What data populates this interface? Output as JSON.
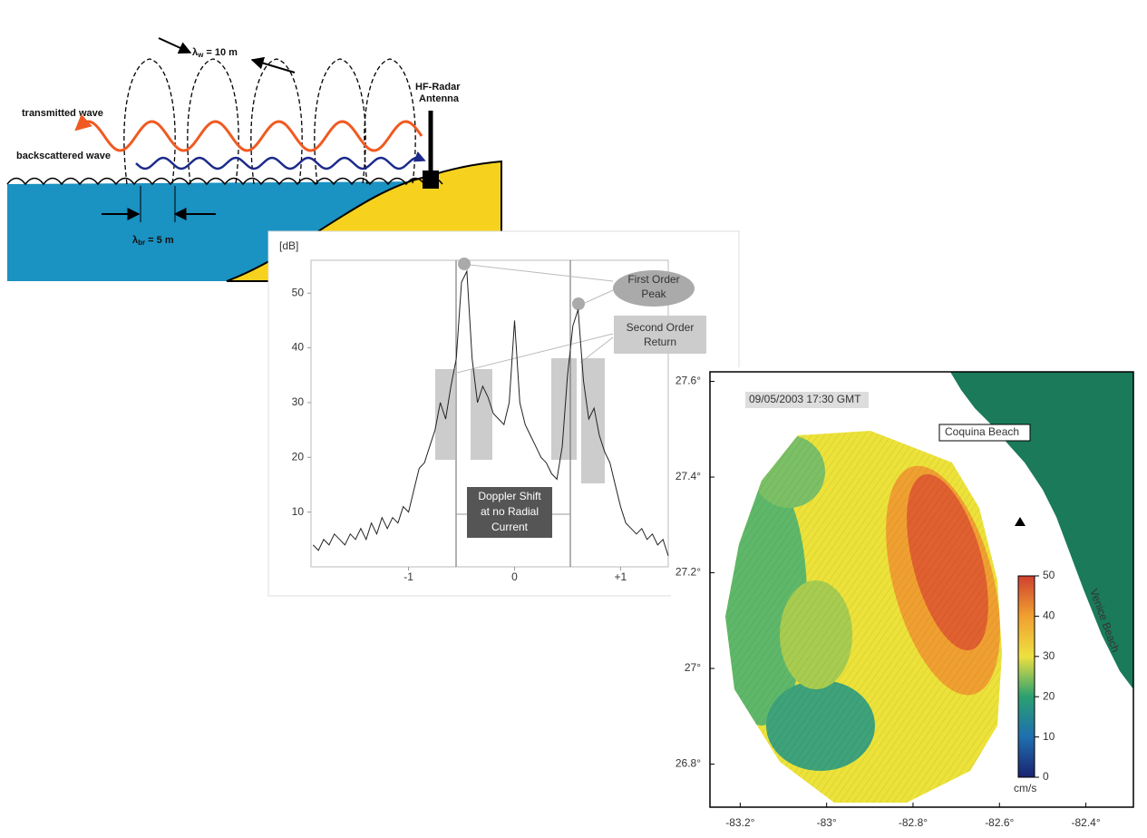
{
  "diagram": {
    "transmitted": "transmitted wave",
    "backscattered": "backscattered wave",
    "antenna": [
      "HF-Radar",
      "Antenna"
    ],
    "lambda_wave": {
      "symbol": "λ",
      "sub": "w",
      "rest": " = 10 m"
    },
    "lambda_bragg": {
      "symbol": "λ",
      "sub": "br",
      "rest": " = 5 m"
    }
  },
  "spectrum": {
    "type": "line",
    "ylabel": "[dB]",
    "xlim": [
      -1.92,
      1.45
    ],
    "ylim": [
      0,
      56
    ],
    "yticks": [
      10,
      20,
      30,
      40,
      50
    ],
    "xticks": [
      -1,
      0,
      {
        "value": 1,
        "label": "+1"
      }
    ],
    "x": [
      -1.9,
      -1.85,
      -1.8,
      -1.75,
      -1.7,
      -1.65,
      -1.6,
      -1.55,
      -1.5,
      -1.45,
      -1.4,
      -1.35,
      -1.3,
      -1.25,
      -1.2,
      -1.15,
      -1.1,
      -1.05,
      -1,
      -0.95,
      -0.9,
      -0.85,
      -0.8,
      -0.75,
      -0.7,
      -0.65,
      -0.6,
      -0.55,
      -0.5,
      -0.45,
      -0.4,
      -0.35,
      -0.3,
      -0.25,
      -0.2,
      -0.15,
      -0.1,
      -0.05,
      0,
      0.05,
      0.1,
      0.15,
      0.2,
      0.25,
      0.3,
      0.35,
      0.4,
      0.45,
      0.5,
      0.55,
      0.6,
      0.65,
      0.7,
      0.75,
      0.8,
      0.85,
      0.9,
      0.95,
      1,
      1.05,
      1.1,
      1.15,
      1.2,
      1.25,
      1.3,
      1.35,
      1.4,
      1.45
    ],
    "values": [
      4,
      3,
      5,
      4,
      6,
      5,
      4,
      6,
      5,
      7,
      5,
      8,
      6,
      9,
      7,
      9,
      8,
      11,
      10,
      14,
      18,
      19,
      22,
      25,
      30,
      27,
      33,
      38,
      52,
      54,
      38,
      30,
      33,
      31,
      28,
      27,
      26,
      30,
      45,
      30,
      26,
      24,
      22,
      20,
      19,
      17,
      16,
      22,
      35,
      44,
      47,
      34,
      27,
      29,
      24,
      21,
      19,
      15,
      11,
      8,
      7,
      6,
      7,
      5,
      6,
      4,
      5,
      2
    ],
    "annotations": {
      "first_order": [
        "First Order",
        "Peak"
      ],
      "second_order": [
        "Second Order",
        "Return"
      ],
      "doppler": [
        "Doppler Shift",
        "at no Radial",
        "Current"
      ]
    }
  },
  "map": {
    "timestamp": "09/05/2003 17:30 GMT",
    "places": [
      "Coquina Beach",
      "Venice Beach"
    ],
    "xlim": [
      -83.27,
      -82.29
    ],
    "ylim": [
      26.71,
      27.62
    ],
    "xticks": [
      {
        "value": -83.2,
        "label": "-83.2°"
      },
      {
        "value": -83,
        "label": "-83°"
      },
      {
        "value": -82.8,
        "label": "-82.8°"
      },
      {
        "value": -82.6,
        "label": "-82.6°"
      },
      {
        "value": -82.4,
        "label": "-82.4°"
      }
    ],
    "yticks": [
      {
        "value": 27.6,
        "label": "27.6°"
      },
      {
        "value": 27.4,
        "label": "27.4°"
      },
      {
        "value": 27.2,
        "label": "27.2°"
      },
      {
        "value": 27,
        "label": "27°"
      },
      {
        "value": 26.8,
        "label": "26.8°"
      }
    ],
    "colorbar": {
      "unit": "cm/s",
      "lim": [
        0,
        50
      ],
      "ticks": [
        0,
        10,
        20,
        30,
        40,
        50
      ]
    }
  }
}
